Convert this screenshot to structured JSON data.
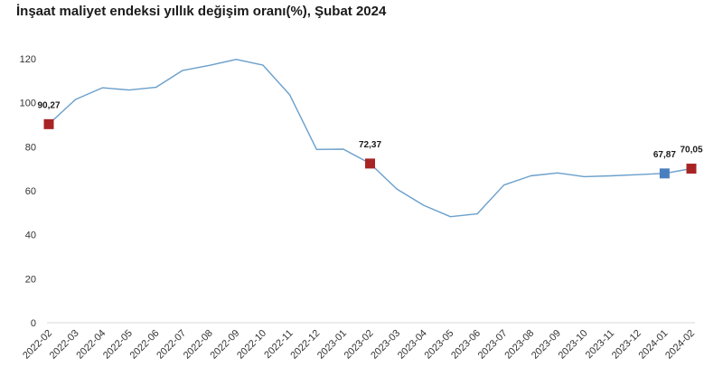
{
  "chart_data": {
    "type": "line",
    "title": "İnşaat maliyet endeksi yıllık değişim oranı(%), Şubat 2024",
    "xlabel": "",
    "ylabel": "",
    "ylim": [
      0,
      120
    ],
    "yticks": [
      0,
      20,
      40,
      60,
      80,
      100,
      120
    ],
    "grid": false,
    "categories": [
      "2022-02",
      "2022-03",
      "2022-04",
      "2022-05",
      "2022-06",
      "2022-07",
      "2022-08",
      "2022-09",
      "2022-10",
      "2022-11",
      "2022-12",
      "2023-01",
      "2023-02",
      "2023-03",
      "2023-04",
      "2023-05",
      "2023-06",
      "2023-07",
      "2023-08",
      "2023-09",
      "2023-10",
      "2023-11",
      "2023-12",
      "2024-01",
      "2024-02"
    ],
    "series": [
      {
        "values": [
          90.27,
          101.5,
          106.8,
          105.8,
          107.0,
          114.7,
          117.0,
          119.7,
          117.1,
          103.6,
          78.8,
          78.9,
          72.37,
          60.8,
          53.4,
          48.2,
          49.5,
          62.6,
          66.8,
          68.1,
          66.4,
          66.8,
          67.3,
          67.87,
          70.05
        ],
        "color": "#6a9fcb"
      }
    ],
    "markers": [
      {
        "index": 0,
        "label": "90,27",
        "color": "#a82424"
      },
      {
        "index": 12,
        "label": "72,37",
        "color": "#a82424"
      },
      {
        "index": 23,
        "label": "67,87",
        "color": "#4a7fbf"
      },
      {
        "index": 24,
        "label": "70,05",
        "color": "#a82424"
      }
    ]
  }
}
